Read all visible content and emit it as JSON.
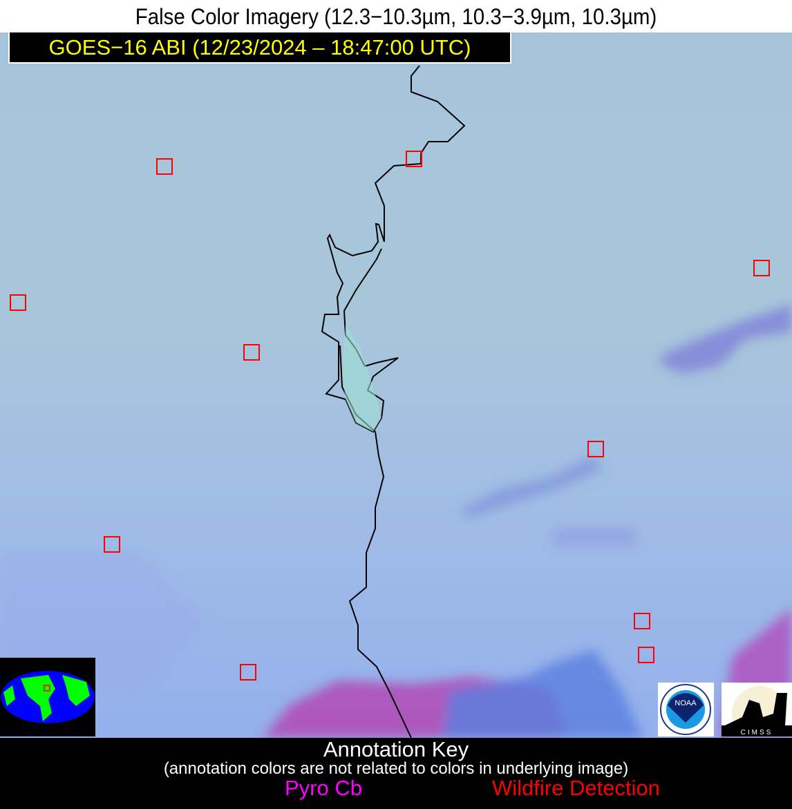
{
  "title": "False Color Imagery (12.3−10.3µm, 10.3−3.9µm, 10.3µm)",
  "satellite_label": "GOES−16 ABI (12/23/2024 – 18:47:00 UTC)",
  "annotation_key": {
    "title": "Annotation Key",
    "note": "(annotation colors are not related to colors in underlying image)",
    "items": [
      {
        "label": "Pyro Cb",
        "color": "#ff00ff"
      },
      {
        "label": "Wildfire Detection",
        "color": "#ff0000"
      }
    ]
  },
  "logos": {
    "noaa": "NOAA",
    "cimss": "CIMSS"
  },
  "colors": {
    "detection_box": "#ff0000",
    "boundary": "#000000",
    "background": "#a6c4dc",
    "label_text": "#ffff00"
  },
  "wildfire_detection_count": 10
}
